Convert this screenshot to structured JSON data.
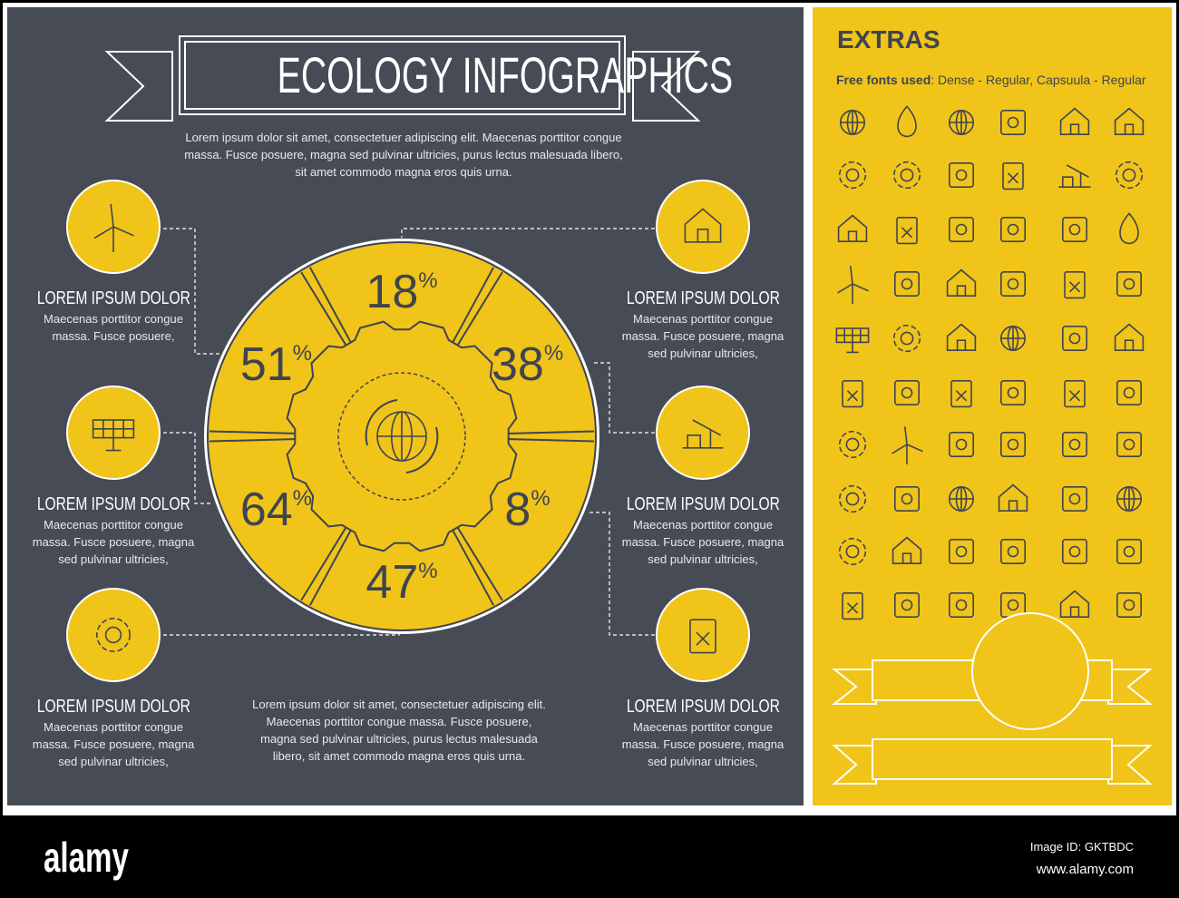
{
  "colors": {
    "panel_dark": "#464b55",
    "accent_yellow": "#f0c419",
    "line_dark": "#3f4450",
    "white": "#ffffff"
  },
  "header": {
    "title": "ECOLOGY INFOGRAPHICS",
    "intro": [
      "Lorem ipsum dolor sit amet, consectetuer adipiscing elit. Maecenas porttitor congue",
      "massa. Fusce posuere, magna sed pulvinar ultricies, purus lectus malesuada libero,",
      "sit amet commodo magna eros quis urna."
    ]
  },
  "center": {
    "icon": "globe-recycle-icon",
    "segments": [
      {
        "value": "18",
        "unit": "%"
      },
      {
        "value": "38",
        "unit": "%"
      },
      {
        "value": "8",
        "unit": "%"
      },
      {
        "value": "47",
        "unit": "%"
      },
      {
        "value": "64",
        "unit": "%"
      },
      {
        "value": "51",
        "unit": "%"
      }
    ]
  },
  "items_left": [
    {
      "icon": "wind-turbine-icon",
      "title": "LOREM IPSUM DOLOR",
      "lines": [
        "Maecenas porttitor congue",
        "massa. Fusce posuere,"
      ]
    },
    {
      "icon": "solar-panel-icon",
      "title": "LOREM IPSUM DOLOR",
      "lines": [
        "Maecenas porttitor congue",
        "massa. Fusce posuere, magna",
        "sed pulvinar ultricies,"
      ]
    },
    {
      "icon": "recycle-icon",
      "title": "LOREM IPSUM DOLOR",
      "lines": [
        "Maecenas porttitor congue",
        "massa. Fusce posuere, magna",
        "sed pulvinar ultricies,"
      ]
    }
  ],
  "items_right": [
    {
      "icon": "nuclear-plant-icon",
      "title": "LOREM IPSUM DOLOR",
      "lines": [
        "Maecenas porttitor congue",
        "massa. Fusce posuere, magna",
        "sed pulvinar ultricies,"
      ]
    },
    {
      "icon": "oil-pump-icon",
      "title": "LOREM IPSUM DOLOR",
      "lines": [
        "Maecenas porttitor congue",
        "massa. Fusce posuere, magna",
        "sed pulvinar ultricies,"
      ]
    },
    {
      "icon": "fuel-can-icon",
      "title": "LOREM IPSUM DOLOR",
      "lines": [
        "Maecenas porttitor congue",
        "massa. Fusce posuere, magna",
        "sed pulvinar ultricies,"
      ]
    }
  ],
  "footer_text": [
    "Lorem ipsum dolor sit amet, consectetuer adipiscing elit.",
    "Maecenas porttitor congue massa. Fusce posuere,",
    "magna sed pulvinar ultricies, purus lectus malesuada",
    "libero, sit amet commodo magna eros quis urna."
  ],
  "extras": {
    "title": "EXTRAS",
    "fonts_label": "Free fonts used",
    "fonts_value": ": Dense - Regular, Capsuula - Regular",
    "icons": [
      "globe-recycle",
      "water-drop",
      "globe",
      "oil-platform",
      "power-plant",
      "shop",
      "recycle",
      "gear",
      "lightning",
      "watering-can",
      "oil-pump",
      "recycle-arrows",
      "plant",
      "fuel-can",
      "plug",
      "faucet",
      "tanker-truck",
      "drop",
      "wind-turbine",
      "puzzle-leaf",
      "nuclear-plant",
      "chart-bars",
      "oil-barrel",
      "growth-chart",
      "solar-panel",
      "gears",
      "eco-house",
      "earth-tree",
      "apple",
      "house-leaf",
      "trash-bin",
      "tools",
      "radioactive-barrel",
      "axe-stump",
      "volcano",
      "electric-car",
      "recycle-arrows",
      "wind-turbine-circle",
      "atom",
      "footprints",
      "rocket",
      "radiation",
      "sun",
      "plug-circle",
      "hand-earth",
      "factory",
      "valve-pipe",
      "hands-globe",
      "sun-gear",
      "buildings",
      "flower",
      "fish-water",
      "hazard-sign",
      "hand-radiation",
      "fuel-nozzle",
      "ship",
      "tanker-truck",
      "folder",
      "factory-fuel",
      "gas-station"
    ]
  },
  "watermark": {
    "logo": "alamy",
    "image_id": "Image ID: GKTBDC",
    "url": "www.alamy.com"
  }
}
